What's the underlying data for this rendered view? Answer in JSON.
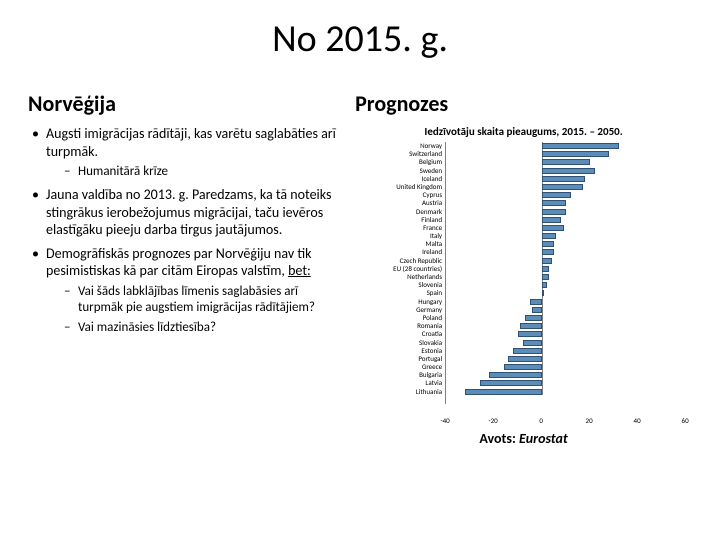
{
  "title": "No 2015. g.",
  "left": {
    "subtitle": "Norvēģija",
    "bullets": [
      {
        "text": "Augsti imigrācijas rādītāji, kas varētu saglabāties arī turpmāk.",
        "sub": [
          "Humanitārā krīze"
        ]
      },
      {
        "text": "Jauna valdība no 2013. g. Paredzams, ka tā noteiks stingrākus ierobežojumus migrācijai, taču ievēros elastīgāku pieeju darba tirgus jautājumos."
      },
      {
        "text_html": "Demogrāfiskās prognozes par Norvēģiju nav tik pesimistiskas kā par citām Eiropas valstīm, <span class=\"underline\">bet:</span>",
        "sub": [
          "Vai šāds labklājības līmenis saglabāsies arī turpmāk pie augstiem imigrācijas rādītājiem?",
          "Vai mazināsies līdztiesība?"
        ]
      }
    ]
  },
  "right": {
    "subtitle": "Prognozes",
    "chart": {
      "title": "Iedzīvotāju skaita pieaugums, 2015. – 2050.",
      "xlim": [
        -40,
        60
      ],
      "xtick_step": 20,
      "zero_at_ratio": 0.4,
      "bar_color": "#5b8db8",
      "bar_border": "#2f5173",
      "axis_color": "#7f7f7f",
      "background_color": "#ffffff",
      "label_fontsize": 7,
      "items": [
        {
          "label": "Norway",
          "value": 32
        },
        {
          "label": "Switzerland",
          "value": 28
        },
        {
          "label": "Belgium",
          "value": 20
        },
        {
          "label": "Sweden",
          "value": 22
        },
        {
          "label": "Iceland",
          "value": 18
        },
        {
          "label": "United Kingdom",
          "value": 17
        },
        {
          "label": "Cyprus",
          "value": 12
        },
        {
          "label": "Austria",
          "value": 10
        },
        {
          "label": "Denmark",
          "value": 10
        },
        {
          "label": "Finland",
          "value": 8
        },
        {
          "label": "France",
          "value": 9
        },
        {
          "label": "Italy",
          "value": 6
        },
        {
          "label": "Malta",
          "value": 5
        },
        {
          "label": "Ireland",
          "value": 5
        },
        {
          "label": "Czech Republic",
          "value": 4
        },
        {
          "label": "EU (28 countries)",
          "value": 3
        },
        {
          "label": "Netherlands",
          "value": 3
        },
        {
          "label": "Slovenia",
          "value": 2
        },
        {
          "label": "Spain",
          "value": 1
        },
        {
          "label": "Hungary",
          "value": -5
        },
        {
          "label": "Germany",
          "value": -4
        },
        {
          "label": "Poland",
          "value": -7
        },
        {
          "label": "Romania",
          "value": -9
        },
        {
          "label": "Croatia",
          "value": -10
        },
        {
          "label": "Slovakia",
          "value": -8
        },
        {
          "label": "Estonia",
          "value": -12
        },
        {
          "label": "Portugal",
          "value": -14
        },
        {
          "label": "Greece",
          "value": -16
        },
        {
          "label": "Bulgaria",
          "value": -22
        },
        {
          "label": "Latvia",
          "value": -26
        },
        {
          "label": "Lithuania",
          "value": -32
        }
      ]
    },
    "source_label": "Avots:",
    "source_name": "Eurostat"
  }
}
